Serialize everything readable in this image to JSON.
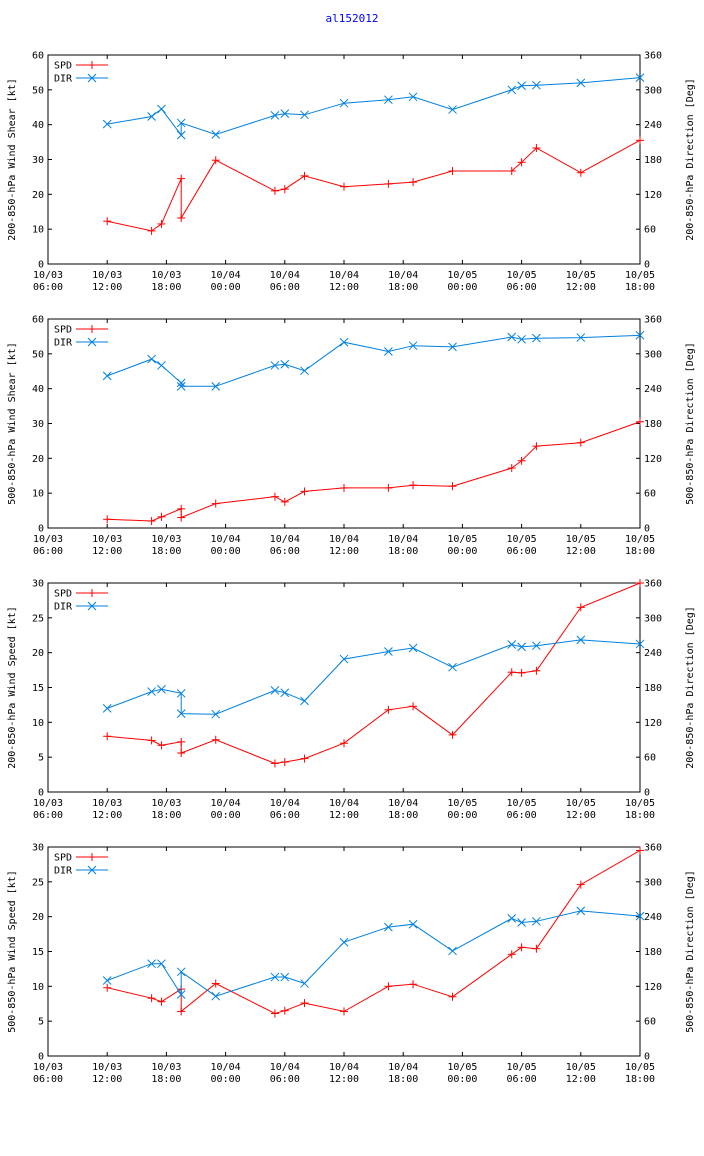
{
  "title": "al152012",
  "colors": {
    "spd": "#ff0000",
    "dir": "#0080e0",
    "title": "#0000ff",
    "axis": "#000000"
  },
  "chart_data": [
    {
      "type": "line",
      "ylabel": "200-850-hPa Wind Shear [kt]",
      "y2label": "200-850-hPa Direction [Deg]",
      "xticks": [
        [
          "10/03",
          "06:00"
        ],
        [
          "10/03",
          "12:00"
        ],
        [
          "10/03",
          "18:00"
        ],
        [
          "10/04",
          "00:00"
        ],
        [
          "10/04",
          "06:00"
        ],
        [
          "10/04",
          "12:00"
        ],
        [
          "10/04",
          "18:00"
        ],
        [
          "10/05",
          "00:00"
        ],
        [
          "10/05",
          "06:00"
        ],
        [
          "10/05",
          "12:00"
        ],
        [
          "10/05",
          "18:00"
        ]
      ],
      "xlim": [
        0,
        60
      ],
      "ylim": [
        0,
        60
      ],
      "yticks": [
        "0",
        "10",
        "20",
        "30",
        "40",
        "50",
        "60"
      ],
      "y2lim": [
        0,
        360
      ],
      "y2ticks": [
        "0",
        "60",
        "120",
        "180",
        "240",
        "300",
        "360"
      ],
      "legend": [
        "SPD",
        "DIR"
      ],
      "series": [
        {
          "name": "SPD",
          "axis": "left",
          "marker": "plus",
          "x": [
            6,
            10.5,
            11.5,
            13.5,
            13.5,
            17,
            23,
            24,
            26,
            30,
            34.5,
            37,
            41,
            47,
            48,
            49.5,
            54,
            60
          ],
          "y": [
            12.3,
            9.5,
            11.5,
            24.5,
            13.2,
            29.8,
            21,
            21.5,
            25.3,
            22.2,
            23,
            23.5,
            26.7,
            26.7,
            29.2,
            33.3,
            26.2,
            35.5
          ]
        },
        {
          "name": "DIR",
          "axis": "right",
          "marker": "x",
          "x": [
            6,
            10.5,
            11.5,
            13.5,
            13.5,
            17,
            23,
            24,
            26,
            30,
            34.5,
            37,
            41,
            47,
            48,
            49.5,
            54,
            60
          ],
          "y": [
            241,
            254,
            267,
            222,
            243,
            223,
            256,
            259,
            257,
            277,
            283,
            288,
            266,
            300,
            307,
            308,
            312,
            321
          ]
        }
      ]
    },
    {
      "type": "line",
      "ylabel": "500-850-hPa Wind Shear [kt]",
      "y2label": "500-850-hPa Direction [Deg]",
      "xticks": [
        [
          "10/03",
          "06:00"
        ],
        [
          "10/03",
          "12:00"
        ],
        [
          "10/03",
          "18:00"
        ],
        [
          "10/04",
          "00:00"
        ],
        [
          "10/04",
          "06:00"
        ],
        [
          "10/04",
          "12:00"
        ],
        [
          "10/04",
          "18:00"
        ],
        [
          "10/05",
          "00:00"
        ],
        [
          "10/05",
          "06:00"
        ],
        [
          "10/05",
          "12:00"
        ],
        [
          "10/05",
          "18:00"
        ]
      ],
      "xlim": [
        0,
        60
      ],
      "ylim": [
        0,
        60
      ],
      "yticks": [
        "0",
        "10",
        "20",
        "30",
        "40",
        "50",
        "60"
      ],
      "y2lim": [
        0,
        360
      ],
      "y2ticks": [
        "0",
        "60",
        "120",
        "180",
        "240",
        "300",
        "360"
      ],
      "legend": [
        "SPD",
        "DIR"
      ],
      "series": [
        {
          "name": "SPD",
          "axis": "left",
          "marker": "plus",
          "x": [
            6,
            10.5,
            11.5,
            13.5,
            13.5,
            17,
            23,
            24,
            26,
            30,
            34.5,
            37,
            41,
            47,
            48,
            49.5,
            54,
            60
          ],
          "y": [
            2.5,
            2,
            3.2,
            5.5,
            3,
            7,
            9,
            7.5,
            10.5,
            11.5,
            11.5,
            12.3,
            12,
            17.2,
            19.3,
            23.5,
            24.5,
            30.5
          ]
        },
        {
          "name": "DIR",
          "axis": "right",
          "marker": "x",
          "x": [
            6,
            10.5,
            11.5,
            13.5,
            13.5,
            17,
            23,
            24,
            26,
            30,
            34.5,
            37,
            41,
            47,
            48,
            49.5,
            54,
            60
          ],
          "y": [
            262,
            291,
            280,
            250,
            244,
            244,
            280,
            282,
            271,
            320,
            304,
            314,
            312,
            329,
            325,
            327,
            328,
            332
          ]
        }
      ]
    },
    {
      "type": "line",
      "ylabel": "200-850-hPa Wind Speed [kt]",
      "y2label": "200-850-hPa Direction [Deg]",
      "xticks": [
        [
          "10/03",
          "06:00"
        ],
        [
          "10/03",
          "12:00"
        ],
        [
          "10/03",
          "18:00"
        ],
        [
          "10/04",
          "00:00"
        ],
        [
          "10/04",
          "06:00"
        ],
        [
          "10/04",
          "12:00"
        ],
        [
          "10/04",
          "18:00"
        ],
        [
          "10/05",
          "00:00"
        ],
        [
          "10/05",
          "06:00"
        ],
        [
          "10/05",
          "12:00"
        ],
        [
          "10/05",
          "18:00"
        ]
      ],
      "xlim": [
        0,
        60
      ],
      "ylim": [
        0,
        30
      ],
      "yticks": [
        "0",
        "5",
        "10",
        "15",
        "20",
        "25",
        "30"
      ],
      "y2lim": [
        0,
        360
      ],
      "y2ticks": [
        "0",
        "60",
        "120",
        "180",
        "240",
        "300",
        "360"
      ],
      "legend": [
        "SPD",
        "DIR"
      ],
      "series": [
        {
          "name": "SPD",
          "axis": "left",
          "marker": "plus",
          "x": [
            6,
            10.5,
            11.5,
            13.5,
            13.5,
            17,
            23,
            24,
            26,
            30,
            34.5,
            37,
            41,
            47,
            48,
            49.5,
            54,
            60
          ],
          "y": [
            8,
            7.4,
            6.7,
            7.2,
            5.6,
            7.5,
            4.1,
            4.3,
            4.8,
            7,
            11.8,
            12.3,
            8.2,
            17.2,
            17.1,
            17.4,
            26.5,
            30
          ]
        },
        {
          "name": "DIR",
          "axis": "right",
          "marker": "x",
          "x": [
            6,
            10.5,
            11.5,
            13.5,
            13.5,
            17,
            23,
            24,
            26,
            30,
            34.5,
            37,
            41,
            47,
            48,
            49.5,
            54,
            60
          ],
          "y": [
            144,
            173,
            177,
            170,
            135,
            134,
            175,
            171,
            157,
            229,
            242,
            248,
            215,
            254,
            250,
            252,
            262,
            255
          ]
        }
      ]
    },
    {
      "type": "line",
      "ylabel": "500-850-hPa Wind Speed [kt]",
      "y2label": "500-850-hPa Direction [Deg]",
      "xticks": [
        [
          "10/03",
          "06:00"
        ],
        [
          "10/03",
          "12:00"
        ],
        [
          "10/03",
          "18:00"
        ],
        [
          "10/04",
          "00:00"
        ],
        [
          "10/04",
          "06:00"
        ],
        [
          "10/04",
          "12:00"
        ],
        [
          "10/04",
          "18:00"
        ],
        [
          "10/05",
          "00:00"
        ],
        [
          "10/05",
          "06:00"
        ],
        [
          "10/05",
          "12:00"
        ],
        [
          "10/05",
          "18:00"
        ]
      ],
      "xlim": [
        0,
        60
      ],
      "ylim": [
        0,
        30
      ],
      "yticks": [
        "0",
        "5",
        "10",
        "15",
        "20",
        "25",
        "30"
      ],
      "y2lim": [
        0,
        360
      ],
      "y2ticks": [
        "0",
        "60",
        "120",
        "180",
        "240",
        "300",
        "360"
      ],
      "legend": [
        "SPD",
        "DIR"
      ],
      "series": [
        {
          "name": "SPD",
          "axis": "left",
          "marker": "plus",
          "x": [
            6,
            10.5,
            11.5,
            13.5,
            13.5,
            17,
            23,
            24,
            26,
            30,
            34.5,
            37,
            41,
            47,
            48,
            49.5,
            54,
            60
          ],
          "y": [
            9.8,
            8.3,
            7.8,
            9.6,
            6.4,
            10.4,
            6.1,
            6.5,
            7.6,
            6.4,
            10,
            10.3,
            8.5,
            14.6,
            15.6,
            15.4,
            24.6,
            29.5
          ]
        },
        {
          "name": "DIR",
          "axis": "right",
          "marker": "x",
          "x": [
            6,
            10.5,
            11.5,
            13.5,
            13.5,
            17,
            23,
            24,
            26,
            30,
            34.5,
            37,
            41,
            47,
            48,
            49.5,
            54,
            60
          ],
          "y": [
            130,
            159,
            159,
            106,
            145,
            103,
            136,
            136,
            125,
            196,
            222,
            227,
            181,
            237,
            230,
            232,
            250,
            241
          ]
        }
      ]
    }
  ]
}
